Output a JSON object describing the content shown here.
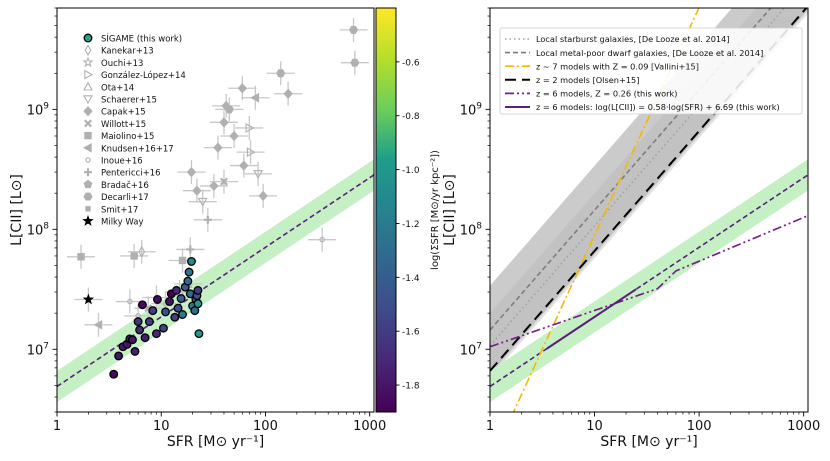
{
  "chart_data": [
    {
      "type": "scatter",
      "xlabel": "SFR [M⊙ yr⁻¹]",
      "ylabel": "L[CII] [L⊙]",
      "xscale": "log",
      "yscale": "log",
      "xlim": [
        1,
        1100
      ],
      "ylim": [
        3000000,
        7000000000
      ],
      "x_ticks": [
        {
          "v": 1,
          "label": "1"
        },
        {
          "v": 10,
          "label": "10"
        },
        {
          "v": 100,
          "label": "100"
        },
        {
          "v": 1000,
          "label": "1000"
        }
      ],
      "y_ticks": [
        {
          "v": 10000000,
          "base": "10",
          "exp": "7"
        },
        {
          "v": 100000000,
          "base": "10",
          "exp": "8"
        },
        {
          "v": 1000000000,
          "base": "10",
          "exp": "9"
        }
      ],
      "relation": {
        "slope": 0.58,
        "intercept": 6.69,
        "band": 0.13,
        "color": "#5b1f7a",
        "band_color": "#c4f0c4"
      },
      "colorbar": {
        "label": "log(ΣSFR [M⊙/yr kpc⁻²])",
        "range": [
          -1.9,
          -0.4
        ],
        "ticks": [
          "-0.6",
          "-0.8",
          "-1.0",
          "-1.2",
          "-1.4",
          "-1.6",
          "-1.8"
        ]
      },
      "legend": [
        {
          "label": "SÍGAME (this work)",
          "marker": "filled-circle"
        },
        {
          "label": "Kanekar+13",
          "marker": "diamond-open"
        },
        {
          "label": "Ouchi+13",
          "marker": "star-open"
        },
        {
          "label": "González-López+14",
          "marker": "triangle-right-open"
        },
        {
          "label": "Ota+14",
          "marker": "triangle-up-open"
        },
        {
          "label": "Schaerer+15",
          "marker": "triangle-down-open"
        },
        {
          "label": "Capak+15",
          "marker": "diamond"
        },
        {
          "label": "Willott+15",
          "marker": "x"
        },
        {
          "label": "Maiolino+15",
          "marker": "square"
        },
        {
          "label": "Knudsen+16+17",
          "marker": "triangle-left"
        },
        {
          "label": "Inoue+16",
          "marker": "circle-small-open"
        },
        {
          "label": "Pentericci+16",
          "marker": "plus"
        },
        {
          "label": "Bradač+16",
          "marker": "pentagon"
        },
        {
          "label": "Decarli+17",
          "marker": "hexagon"
        },
        {
          "label": "Smit+17",
          "marker": "small-square"
        },
        {
          "label": "Milky Way",
          "marker": "star-black"
        }
      ],
      "sigame_points": [
        {
          "sfr": 3.5,
          "l": 6200000,
          "c": -1.85
        },
        {
          "sfr": 3.9,
          "l": 8800000,
          "c": -1.8
        },
        {
          "sfr": 4.3,
          "l": 10500000,
          "c": -1.8
        },
        {
          "sfr": 4.7,
          "l": 11000000,
          "c": -1.8
        },
        {
          "sfr": 5.0,
          "l": 12200000,
          "c": -1.75
        },
        {
          "sfr": 5.3,
          "l": 12000000,
          "c": -1.8
        },
        {
          "sfr": 5.6,
          "l": 9600000,
          "c": -1.75
        },
        {
          "sfr": 6.2,
          "l": 14500000,
          "c": -1.7
        },
        {
          "sfr": 6.0,
          "l": 17000000,
          "c": -1.65
        },
        {
          "sfr": 6.6,
          "l": 23500000,
          "c": -1.85
        },
        {
          "sfr": 7.0,
          "l": 12500000,
          "c": -1.75
        },
        {
          "sfr": 7.7,
          "l": 17000000,
          "c": -1.6
        },
        {
          "sfr": 8.3,
          "l": 21000000,
          "c": -1.6
        },
        {
          "sfr": 9.2,
          "l": 26000000,
          "c": -1.85
        },
        {
          "sfr": 9.0,
          "l": 13500000,
          "c": -1.7
        },
        {
          "sfr": 10.5,
          "l": 15000000,
          "c": -1.55
        },
        {
          "sfr": 11.0,
          "l": 20500000,
          "c": -1.5
        },
        {
          "sfr": 12.0,
          "l": 25000000,
          "c": -1.8
        },
        {
          "sfr": 12.5,
          "l": 29000000,
          "c": -1.9
        },
        {
          "sfr": 13.5,
          "l": 18500000,
          "c": -1.6
        },
        {
          "sfr": 14.5,
          "l": 22000000,
          "c": -1.5
        },
        {
          "sfr": 15.5,
          "l": 26500000,
          "c": -1.4
        },
        {
          "sfr": 16.0,
          "l": 19500000,
          "c": -1.2
        },
        {
          "sfr": 17.0,
          "l": 33000000,
          "c": -1.4
        },
        {
          "sfr": 18.0,
          "l": 37000000,
          "c": -1.3
        },
        {
          "sfr": 18.5,
          "l": 44000000,
          "c": -1.25
        },
        {
          "sfr": 19.5,
          "l": 54000000,
          "c": -1.1
        },
        {
          "sfr": 19.0,
          "l": 29000000,
          "c": -1.3
        },
        {
          "sfr": 20.0,
          "l": 23000000,
          "c": -1.2
        },
        {
          "sfr": 21.0,
          "l": 21000000,
          "c": -1.3
        },
        {
          "sfr": 21.5,
          "l": 26000000,
          "c": -1.35
        },
        {
          "sfr": 22.0,
          "l": 28000000,
          "c": -1.5
        },
        {
          "sfr": 22.5,
          "l": 31000000,
          "c": -1.6
        },
        {
          "sfr": 22.5,
          "l": 24000000,
          "c": -1.0
        },
        {
          "sfr": 23.0,
          "l": 13500000,
          "c": -1.0
        },
        {
          "sfr": 14.0,
          "l": 31000000,
          "c": -1.7
        }
      ],
      "literature_points": [
        {
          "sfr": 1.7,
          "l": 59000000,
          "m": "square"
        },
        {
          "sfr": 2.0,
          "l": 26000000,
          "m": "star-black"
        },
        {
          "sfr": 2.5,
          "l": 16000000,
          "m": "triangle-left"
        },
        {
          "sfr": 5.5,
          "l": 60000000,
          "m": "square"
        },
        {
          "sfr": 6.5,
          "l": 65000000,
          "m": "diamond-open"
        },
        {
          "sfr": 7.5,
          "l": 22000000,
          "m": "x"
        },
        {
          "sfr": 5.0,
          "l": 25000000,
          "m": "circle-small-open"
        },
        {
          "sfr": 6.0,
          "l": 19000000,
          "m": "circle-small-open"
        },
        {
          "sfr": 9.0,
          "l": 27000000,
          "m": "circle-small-open"
        },
        {
          "sfr": 11.0,
          "l": 24000000,
          "m": "circle-small-open"
        },
        {
          "sfr": 15.0,
          "l": 30000000,
          "m": "triangle-up-open"
        },
        {
          "sfr": 16.0,
          "l": 55000000,
          "m": "square"
        },
        {
          "sfr": 18.0,
          "l": 35000000,
          "m": "triangle-up-open"
        },
        {
          "sfr": 19.0,
          "l": 68000000,
          "m": "plus"
        },
        {
          "sfr": 19.5,
          "l": 300000000,
          "m": "diamond"
        },
        {
          "sfr": 22.0,
          "l": 210000000,
          "m": "diamond"
        },
        {
          "sfr": 25.0,
          "l": 170000000,
          "m": "triangle-down-open"
        },
        {
          "sfr": 28.0,
          "l": 120000000,
          "m": "plus"
        },
        {
          "sfr": 32.0,
          "l": 230000000,
          "m": "diamond"
        },
        {
          "sfr": 40.0,
          "l": 250000000,
          "m": "x"
        },
        {
          "sfr": 35.0,
          "l": 480000000,
          "m": "diamond"
        },
        {
          "sfr": 40.0,
          "l": 780000000,
          "m": "diamond"
        },
        {
          "sfr": 42.0,
          "l": 1070000000,
          "m": "diamond"
        },
        {
          "sfr": 45.0,
          "l": 1000000000,
          "m": "hexagon"
        },
        {
          "sfr": 50.0,
          "l": 600000000,
          "m": "diamond"
        },
        {
          "sfr": 60.0,
          "l": 1500000000,
          "m": "diamond"
        },
        {
          "sfr": 62.0,
          "l": 340000000,
          "m": "diamond"
        },
        {
          "sfr": 70.0,
          "l": 700000000,
          "m": "triangle-right-open"
        },
        {
          "sfr": 72.0,
          "l": 440000000,
          "m": "triangle-right-open"
        },
        {
          "sfr": 80.0,
          "l": 1250000000,
          "m": "triangle-left"
        },
        {
          "sfr": 85.0,
          "l": 290000000,
          "m": "triangle-down-open"
        },
        {
          "sfr": 95.0,
          "l": 190000000,
          "m": "diamond"
        },
        {
          "sfr": 140.0,
          "l": 2000000000,
          "m": "hexagon"
        },
        {
          "sfr": 165.0,
          "l": 1350000000,
          "m": "diamond"
        },
        {
          "sfr": 350.0,
          "l": 82000000,
          "m": "circle-small-open"
        },
        {
          "sfr": 700.0,
          "l": 4600000000,
          "m": "hexagon"
        },
        {
          "sfr": 720.0,
          "l": 2450000000,
          "m": "hexagon"
        }
      ]
    },
    {
      "type": "line",
      "xlabel": "SFR [M⊙ yr⁻¹]",
      "ylabel": "L[CII] [L⊙]",
      "xscale": "log",
      "yscale": "log",
      "xlim": [
        1,
        1100
      ],
      "ylim": [
        3000000,
        7000000000
      ],
      "x_ticks": [
        {
          "v": 1,
          "label": "1"
        },
        {
          "v": 10,
          "label": "10"
        },
        {
          "v": 100,
          "label": "100"
        },
        {
          "v": 1000,
          "label": "1000"
        }
      ],
      "y_ticks": [
        {
          "v": 10000000,
          "base": "10",
          "exp": "7"
        },
        {
          "v": 100000000,
          "base": "10",
          "exp": "8"
        },
        {
          "v": 1000000000,
          "base": "10",
          "exp": "9"
        }
      ],
      "legend_items": [
        {
          "text": "Local starburst galaxies, [De Looze et al. 2014]"
        },
        {
          "text": "Local metal-poor dwarf galaxies, [De Looze et al. 2014]"
        },
        {
          "text": "z ~ 7 models with Z = 0.09 [Vallini+15]"
        },
        {
          "text": "z = 2 models [Olsen+15]"
        },
        {
          "text": "z = 6 models, Z = 0.26 (this work)"
        },
        {
          "text": "z = 6 models: log(L[CII]) = 0.58·log(SFR) + 6.69 (this work)"
        }
      ],
      "series": [
        {
          "name": "Local starburst galaxies",
          "slope": 1.0,
          "intercept": 7.03,
          "dispersion": 0.27,
          "color": "#a0a0a0",
          "fill": "#d8d8d8"
        },
        {
          "name": "Local metal-poor dwarf galaxies",
          "slope": 1.0,
          "intercept": 7.16,
          "dispersion": 0.37,
          "color": "#7d7d7d",
          "fill": "#b5b5b5"
        },
        {
          "name": "z ~ 7 Vallini+15",
          "slope": 1.9,
          "intercept": 6.05,
          "color": "#f5b800"
        },
        {
          "name": "z = 2 Olsen+15",
          "slope": 1.0,
          "intercept": 6.82,
          "color": "#000000"
        },
        {
          "name": "z = 6, Z = 0.26",
          "x": [
            1,
            40,
            60,
            1100
          ],
          "y": [
            10500000,
            32000000,
            45000000,
            130000000
          ],
          "color": "#7a1f8a"
        },
        {
          "name": "z = 6 fit",
          "slope": 0.58,
          "intercept": 6.69,
          "band": 0.13,
          "color": "#5b1f7a",
          "band_color": "#c4f0c4"
        }
      ]
    }
  ]
}
